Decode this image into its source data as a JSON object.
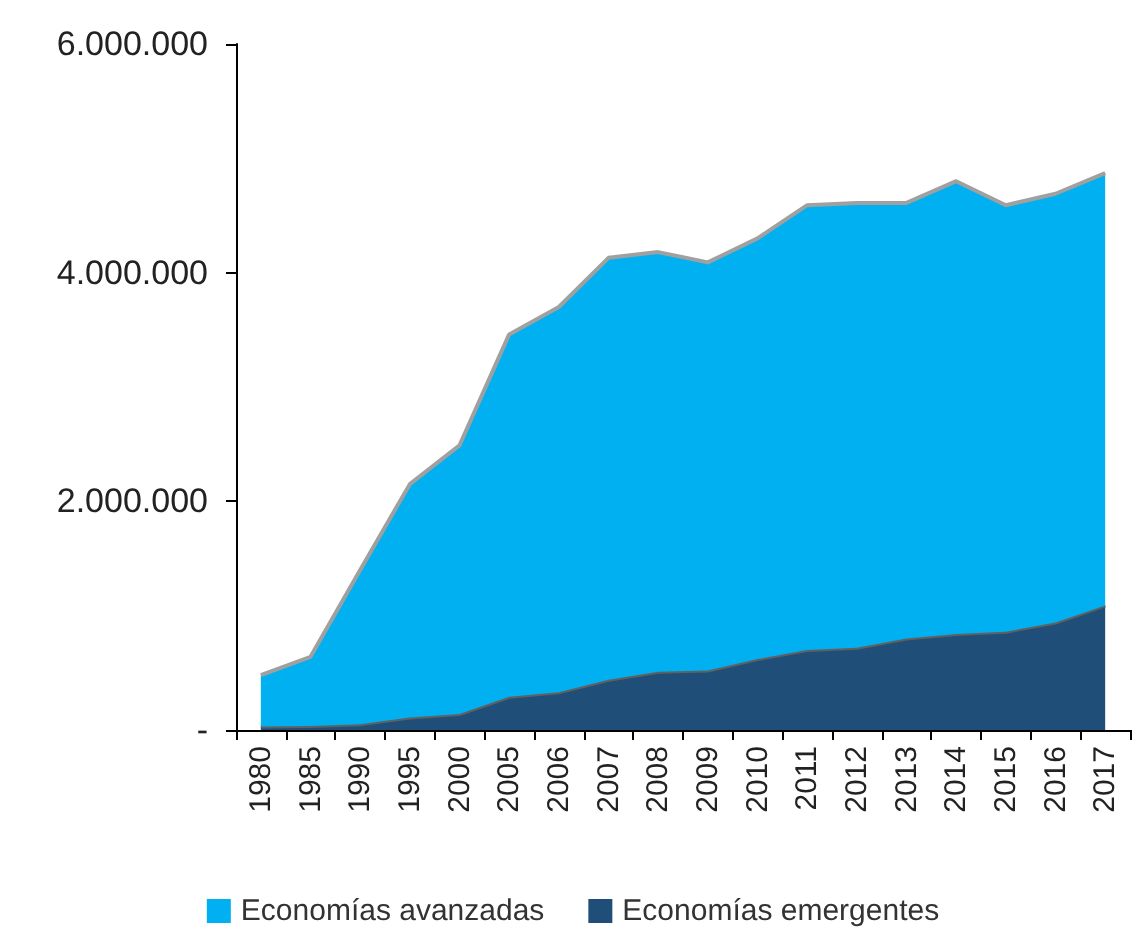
{
  "chart_data": {
    "type": "area",
    "stacked": true,
    "categories": [
      "1980",
      "1985",
      "1990",
      "1995",
      "2000",
      "2005",
      "2006",
      "2007",
      "2008",
      "2009",
      "2010",
      "2011",
      "2012",
      "2013",
      "2014",
      "2015",
      "2016",
      "2017"
    ],
    "series": [
      {
        "name": "Economías emergentes",
        "color": "#1f4e79",
        "values": [
          30000,
          35000,
          50000,
          110000,
          140000,
          290000,
          330000,
          440000,
          510000,
          520000,
          620000,
          700000,
          720000,
          800000,
          840000,
          860000,
          940000,
          1090000
        ]
      },
      {
        "name": "Economías avanzadas",
        "color": "#00b0f0",
        "values": [
          450000,
          605000,
          1350000,
          2040000,
          2350000,
          3170000,
          3370000,
          3690000,
          3670000,
          3570000,
          3680000,
          3890000,
          3890000,
          3810000,
          3960000,
          3730000,
          3750000,
          3780000
        ]
      }
    ],
    "ylim": [
      0,
      6000000
    ],
    "yticks": [
      {
        "value": 0,
        "label": "-"
      },
      {
        "value": 2000000,
        "label": "2.000.000"
      },
      {
        "value": 4000000,
        "label": "4.000.000"
      },
      {
        "value": 6000000,
        "label": "6.000.000"
      }
    ],
    "grid": false,
    "legend": "bottom"
  }
}
